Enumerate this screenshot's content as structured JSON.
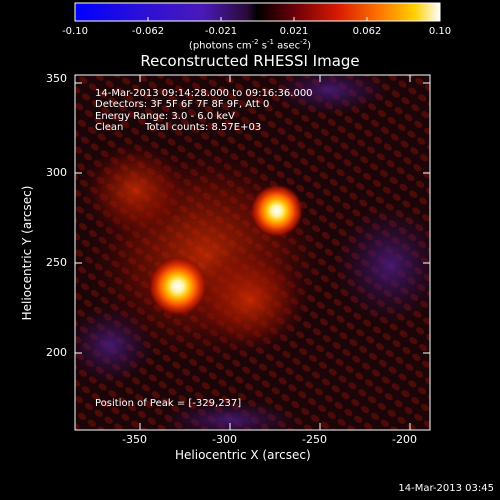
{
  "colorbar": {
    "tick_labels": [
      "-0.10",
      "-0.062",
      "-0.021",
      "0.021",
      "0.062",
      "0.10"
    ],
    "units_parts": [
      "(photons cm",
      "-2",
      " s",
      "-1",
      " asec",
      "-2",
      ")"
    ]
  },
  "title": "Reconstructed RHESSI Image",
  "overlay": {
    "time_range": "14-Mar-2013 09:14:28.000 to 09:16:36.000",
    "detectors": "Detectors: 3F 5F 6F 7F 8F 9F, Att 0",
    "energy_range": "Energy Range: 3.0 - 6.0 keV",
    "algorithm": "Clean",
    "total_counts": "Total counts: 8.57E+03",
    "peak_position": "Position of Peak = [-329,237]"
  },
  "axes": {
    "xlabel": "Heliocentric X (arcsec)",
    "ylabel": "Heliocentric Y (arcsec)",
    "xticks": [
      "-350",
      "-300",
      "-250",
      "-200"
    ],
    "yticks": [
      "200",
      "250",
      "300",
      "350"
    ]
  },
  "footer_date": "14-Mar-2013 03:45",
  "colors": {
    "negative_end": "#0000ff",
    "positive_end": "#ffffff",
    "background": "#000000"
  },
  "image_sources": [
    {
      "x": -329,
      "y": 237,
      "intensity": 1.0
    },
    {
      "x": -274,
      "y": 279,
      "intensity": 0.9
    }
  ]
}
